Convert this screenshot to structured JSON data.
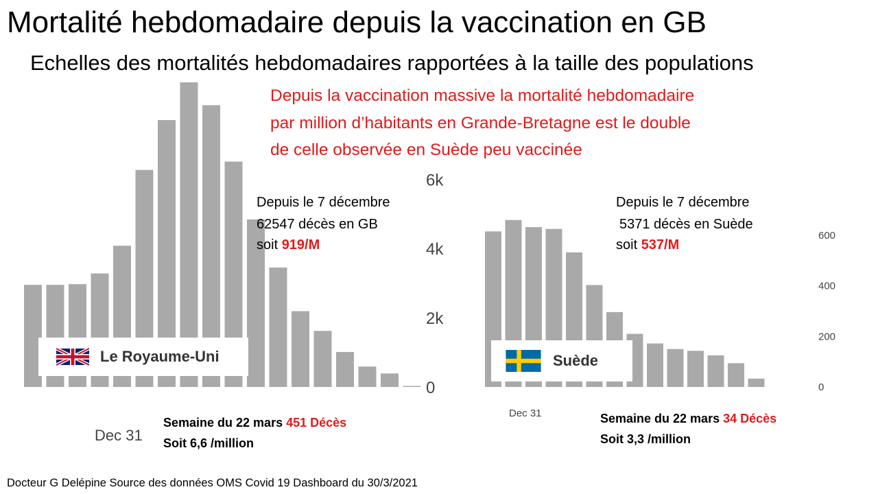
{
  "title": "Mortalité hebdomadaire depuis la vaccination en GB",
  "subtitle": "Echelles des mortalités hebdomadaires rapportées à la taille des populations",
  "note_lines": [
    "Depuis la vaccination massive la mortalité hebdomadaire",
    "par million d’habitants en Grande-Bretagne est le double",
    "de celle observée en Suède peu vaccinée"
  ],
  "uk": {
    "stat_line1": "Depuis le 7 décembre",
    "stat_line2": "62547 décès en GB",
    "stat_prefix": "soit ",
    "stat_value": "919/M",
    "country_label": "Le Royaume-Uni",
    "week_label": "Semaine du 22 mars",
    "week_deaths": "451 Décès",
    "week_rate": "Soit 6,6 /million"
  },
  "se": {
    "stat_line1": "Depuis le 7 décembre",
    "stat_line2": "5371 décès en Suède",
    "stat_prefix": "soit ",
    "stat_value": "537/M",
    "country_label": "Suède",
    "week_label": "Semaine du 22 mars",
    "week_deaths": "34 Décès",
    "week_rate": "Soit 3,3 /million"
  },
  "footer": "Docteur G Delépine  Source des données OMS Covid 19 Dashboard du 30/3/2021",
  "colors": {
    "bar": "#a9a9a9",
    "accent": "#e01b1b",
    "tick": "#444444"
  },
  "chart_data": [
    {
      "type": "bar",
      "name": "Le Royaume-Uni",
      "ylim": [
        0,
        8800
      ],
      "yticks": [
        0,
        2000,
        4000,
        6000
      ],
      "ytick_labels": [
        "0",
        "2k",
        "4k",
        "6k"
      ],
      "xtick_labels": [
        "Dec 31"
      ],
      "values": [
        2950,
        2950,
        2970,
        3280,
        4080,
        6270,
        7710,
        8800,
        8140,
        6510,
        4840,
        3450,
        2190,
        1620,
        1010,
        590,
        390,
        30
      ]
    },
    {
      "type": "bar",
      "name": "Suède",
      "ylim": [
        0,
        670
      ],
      "yticks": [
        0,
        200,
        400,
        600
      ],
      "ytick_labels": [
        "0",
        "200",
        "400",
        "600"
      ],
      "xtick_labels": [
        "Dec 31"
      ],
      "values": [
        615,
        660,
        632,
        625,
        532,
        403,
        296,
        210,
        172,
        150,
        143,
        125,
        94,
        33
      ]
    }
  ]
}
